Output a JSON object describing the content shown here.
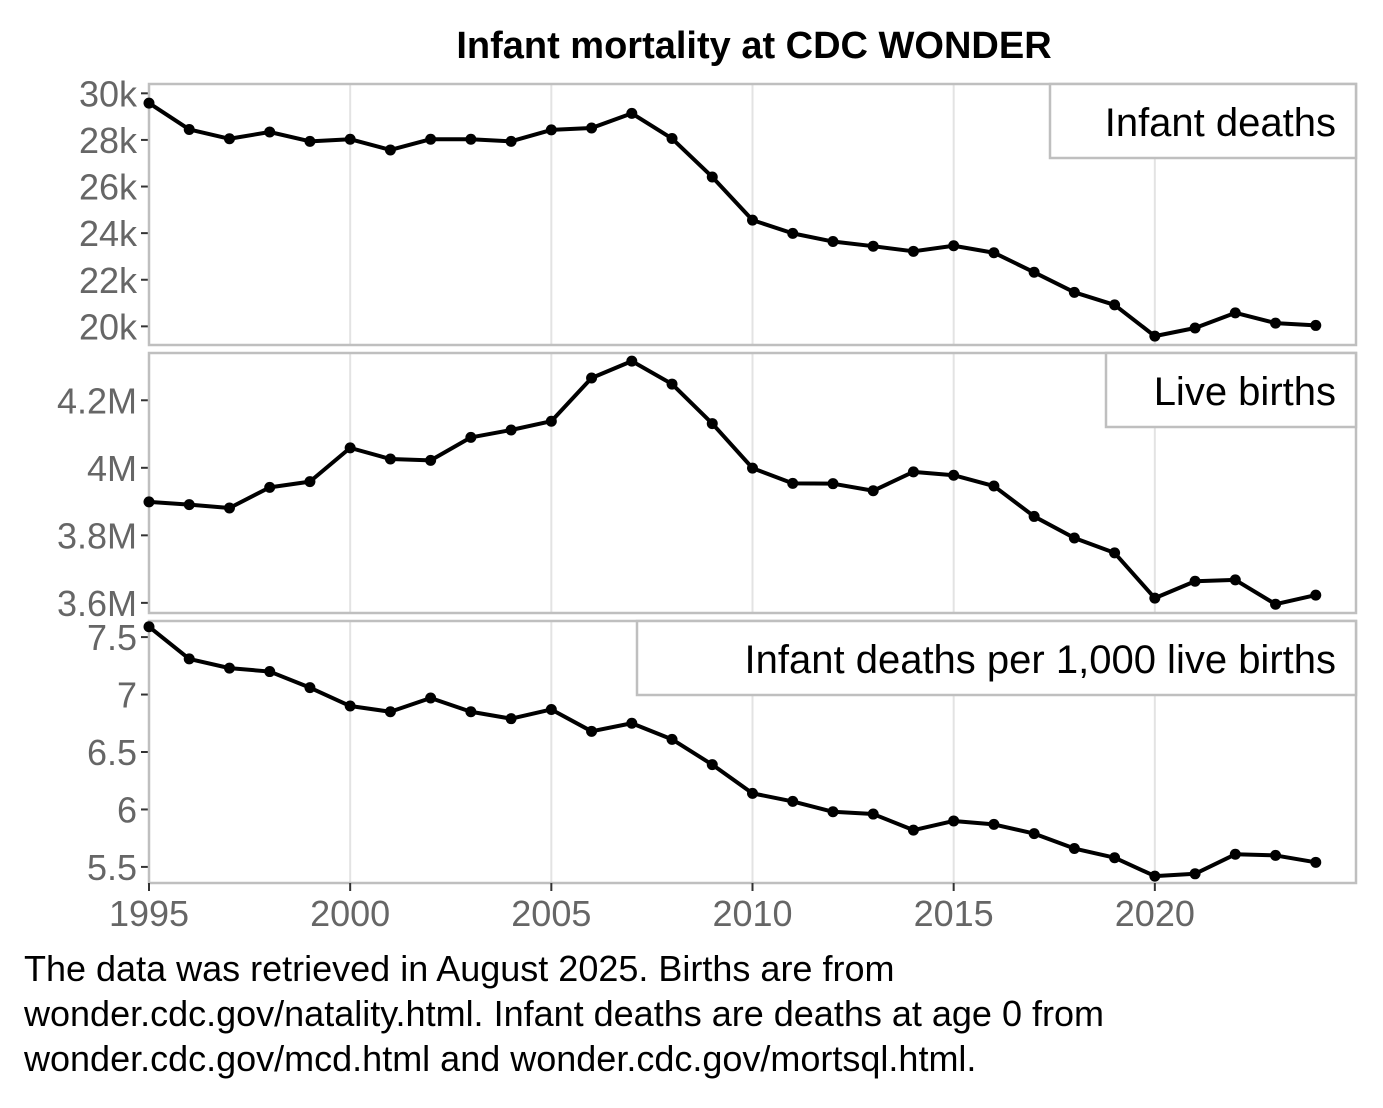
{
  "title": "Infant mortality at CDC WONDER",
  "caption_lines": [
    "The data was retrieved in August 2025. Births are from",
    "wonder.cdc.gov/natality.html. Infant deaths are deaths at age 0 from",
    "wonder.cdc.gov/mcd.html and wonder.cdc.gov/mortsql.html."
  ],
  "colors": {
    "line": "#000000",
    "panel_border": "#bfbfbf",
    "grid": "#e3e3e3",
    "tick_text": "#666666"
  },
  "chart_data": {
    "type": "line",
    "x": [
      1995,
      1996,
      1997,
      1998,
      1999,
      2000,
      2001,
      2002,
      2003,
      2004,
      2005,
      2006,
      2007,
      2008,
      2009,
      2010,
      2011,
      2012,
      2013,
      2014,
      2015,
      2016,
      2017,
      2018,
      2019,
      2020,
      2021,
      2022,
      2023,
      2024
    ],
    "x_ticks": [
      1995,
      2000,
      2005,
      2010,
      2015,
      2020
    ],
    "x_tick_labels": [
      "1995",
      "2000",
      "2005",
      "2010",
      "2015",
      "2020"
    ],
    "xlim": [
      1995,
      2025
    ],
    "grid": true,
    "panels": [
      {
        "label": "Infant deaths",
        "ylim": [
          19200,
          30400
        ],
        "y_ticks": [
          20000,
          22000,
          24000,
          26000,
          28000,
          30000
        ],
        "y_tick_labels": [
          "20k",
          "22k",
          "24k",
          "26k",
          "28k",
          "30k"
        ],
        "values": [
          29580,
          28450,
          28050,
          28340,
          27940,
          28030,
          27570,
          28030,
          28030,
          27940,
          28430,
          28510,
          29140,
          28060,
          26410,
          24560,
          23990,
          23640,
          23440,
          23220,
          23460,
          23160,
          22320,
          21460,
          20920,
          19580,
          19930,
          20580,
          20140,
          20040
        ]
      },
      {
        "label": "Live births",
        "ylim": [
          3570000,
          4340000
        ],
        "y_ticks": [
          3600000,
          3800000,
          4000000,
          4200000
        ],
        "y_tick_labels": [
          "3.6M",
          "3.8M",
          "4M",
          "4.2M"
        ],
        "values": [
          3899000,
          3891000,
          3881000,
          3942000,
          3959000,
          4059000,
          4026000,
          4022000,
          4090000,
          4112000,
          4138000,
          4266000,
          4316000,
          4248000,
          4131000,
          3999000,
          3954000,
          3953000,
          3932000,
          3988000,
          3978000,
          3946000,
          3856000,
          3792000,
          3748000,
          3614000,
          3664000,
          3668000,
          3596000,
          3623000
        ]
      },
      {
        "label": "Infant deaths per 1,000 live births",
        "ylim": [
          5.36,
          7.64
        ],
        "y_ticks": [
          5.5,
          6,
          6.5,
          7,
          7.5
        ],
        "y_tick_labels": [
          "5.5",
          "6",
          "6.5",
          "7",
          "7.5"
        ],
        "values": [
          7.59,
          7.31,
          7.23,
          7.2,
          7.06,
          6.9,
          6.85,
          6.97,
          6.85,
          6.79,
          6.87,
          6.68,
          6.75,
          6.61,
          6.39,
          6.14,
          6.07,
          5.98,
          5.96,
          5.82,
          5.9,
          5.87,
          5.79,
          5.66,
          5.58,
          5.42,
          5.44,
          5.61,
          5.6,
          5.54
        ]
      }
    ]
  }
}
